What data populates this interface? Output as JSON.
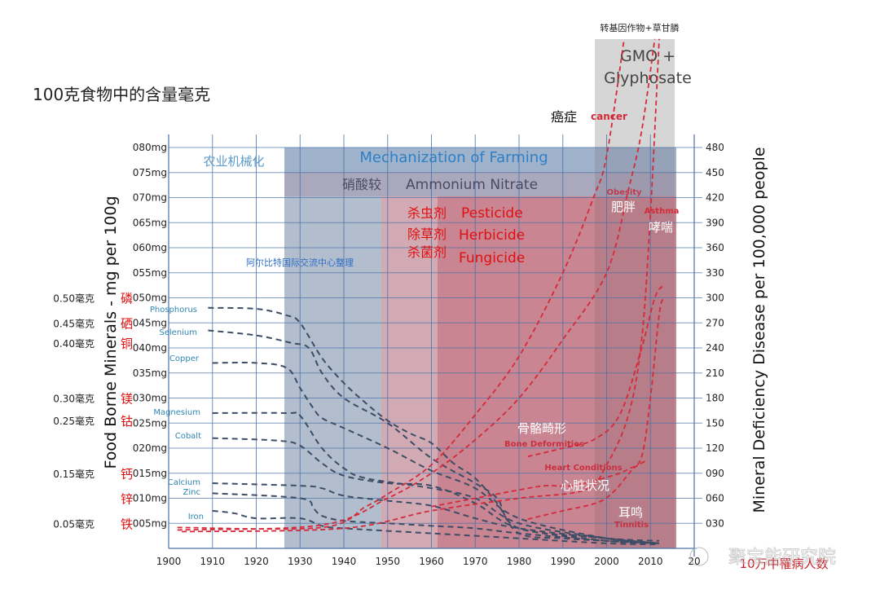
{
  "page_title": "100克食物中的含量毫克",
  "top_label_cn": "转基因作物+草甘膦",
  "chart_data": {
    "type": "line",
    "title": "",
    "xlabel": "",
    "ylabel_left": "Food Borne Minerals - mg per 100g",
    "ylabel_right": "Mineral Deficiency Disease per 100,000 people",
    "right_axis_note_cn": "10万中罹病人数",
    "xlim": [
      1900,
      2020
    ],
    "ylim_left": [
      0,
      80
    ],
    "ylim_right": [
      0,
      480
    ],
    "grid": true,
    "x_ticks": [
      "1900",
      "1910",
      "1920",
      "1930",
      "1940",
      "1950",
      "1960",
      "1970",
      "1980",
      "1990",
      "2000",
      "2010",
      "20"
    ],
    "y_left_ticks": [
      "005mg",
      "010mg",
      "015mg",
      "020mg",
      "025mg",
      "030mg",
      "035mg",
      "040mg",
      "045mg",
      "050mg",
      "055mg",
      "060mg",
      "065mg",
      "070mg",
      "075mg",
      "080mg"
    ],
    "y_right_ticks": [
      "030",
      "060",
      "090",
      "120",
      "150",
      "180",
      "210",
      "240",
      "270",
      "300",
      "330",
      "360",
      "390",
      "420",
      "450",
      "480"
    ],
    "left_cn_labels": [
      {
        "amount": "0.50毫克",
        "element": "磷",
        "mg": 50
      },
      {
        "amount": "0.45毫克",
        "element": "硒",
        "mg": 45
      },
      {
        "amount": "0.40毫克",
        "element": "铜",
        "mg": 41
      },
      {
        "amount": "0.30毫克",
        "element": "镁",
        "mg": 30
      },
      {
        "amount": "0.25毫克",
        "element": "钴",
        "mg": 25.5
      },
      {
        "amount": "0.15毫克",
        "element": "钙",
        "mg": 15
      },
      {
        "amount": "",
        "element": "锌",
        "mg": 10
      },
      {
        "amount": "0.05毫克",
        "element": "铁",
        "mg": 5
      }
    ],
    "eras": [
      {
        "label": "农业机械化",
        "color": "#ffffff"
      },
      {
        "label": "Mechanization of Farming",
        "color": "#9fb3cc",
        "start": 1927
      },
      {
        "label_cn": "硝酸较",
        "label": "Ammonium Nitrate",
        "color": "#aaa8bd",
        "start": 1927
      },
      {
        "label_cn": [
          "杀虫剂",
          "除草剂",
          "杀菌剂"
        ],
        "label": [
          "Pesticide",
          "Herbicide",
          "Fungicide"
        ],
        "color": "#c98592",
        "start": 1950
      },
      {
        "label": "GMO + Glyphosate",
        "color": "#d6d6d6",
        "start": 1997,
        "end": 2015
      }
    ],
    "credit_cn": "阿尔比特国际交流中心整理",
    "mineral_series": [
      {
        "name": "Phosphorus",
        "axis": "left",
        "x": [
          1909,
          1920,
          1927,
          1930,
          1935,
          1940,
          1945,
          1950,
          1955,
          1960,
          1965,
          1970,
          1975,
          1980,
          1990,
          2000,
          2012
        ],
        "y": [
          48,
          47.8,
          46.5,
          45,
          38,
          33,
          29,
          25.5,
          23,
          21,
          17,
          14,
          9,
          3,
          2,
          1.5,
          1
        ]
      },
      {
        "name": "Selenium",
        "axis": "left",
        "x": [
          1909,
          1920,
          1928,
          1932,
          1935,
          1940,
          1950,
          1960,
          1970,
          1975,
          1980,
          2000,
          2012
        ],
        "y": [
          43.5,
          42.5,
          41,
          40,
          35,
          30,
          25,
          18,
          13,
          10,
          4,
          2,
          1
        ]
      },
      {
        "name": "Copper",
        "axis": "left",
        "x": [
          1910,
          1920,
          1927,
          1930,
          1933,
          1935,
          1940,
          1950,
          1960,
          1970,
          1980,
          2000,
          2012
        ],
        "y": [
          37,
          37,
          36,
          32,
          28,
          26,
          24,
          20,
          15.5,
          12,
          6,
          2,
          1
        ]
      },
      {
        "name": "Magnesium",
        "axis": "left",
        "x": [
          1910,
          1927,
          1930,
          1935,
          1940,
          1945,
          1960,
          1970,
          1980,
          2000,
          2012
        ],
        "y": [
          27,
          27,
          26.5,
          20,
          16,
          14,
          12,
          10,
          5,
          2,
          1
        ]
      },
      {
        "name": "Cobalt",
        "axis": "left",
        "x": [
          1910,
          1925,
          1930,
          1935,
          1940,
          1950,
          1960,
          1970,
          1980,
          2000,
          2012
        ],
        "y": [
          22,
          21.5,
          20.5,
          17,
          14.5,
          13,
          12.5,
          9,
          4,
          1.5,
          1
        ]
      },
      {
        "name": "Calcium",
        "axis": "left",
        "x": [
          1910,
          1930,
          1935,
          1940,
          1950,
          1960,
          1970,
          1980,
          2000,
          2012
        ],
        "y": [
          13,
          12.5,
          12,
          10.5,
          9.5,
          8.5,
          6,
          4,
          2,
          1.5
        ]
      },
      {
        "name": "Zinc",
        "axis": "left",
        "x": [
          1910,
          1930,
          1933,
          1935,
          1940,
          1950,
          1960,
          1970,
          1980,
          2000,
          2012
        ],
        "y": [
          11,
          10,
          8,
          6.5,
          5.5,
          5,
          4.5,
          4,
          3,
          1.5,
          1
        ]
      },
      {
        "name": "Iron",
        "axis": "left",
        "x": [
          1910,
          1915,
          1920,
          1930,
          1935,
          1940,
          1960,
          1980,
          2000,
          2012
        ],
        "y": [
          7.5,
          7,
          6,
          6,
          4.5,
          4,
          3,
          2,
          1,
          0.8
        ]
      }
    ],
    "disease_series": [
      {
        "name": "cancer",
        "name_cn": "癌症",
        "axis": "right",
        "x": [
          1902,
          1935,
          1945,
          1950,
          1960,
          1970,
          1980,
          1990,
          1997,
          2000,
          2004
        ],
        "y": [
          25,
          25,
          50,
          65,
          100,
          160,
          230,
          330,
          420,
          470,
          610
        ]
      },
      {
        "name": "Obesity",
        "name_cn": "肥胖",
        "axis": "right",
        "x": [
          1902,
          1935,
          1950,
          1960,
          1970,
          1980,
          1990,
          2000,
          2005,
          2008,
          2011
        ],
        "y": [
          22,
          28,
          60,
          90,
          130,
          180,
          250,
          330,
          430,
          500,
          610
        ]
      },
      {
        "name": "Asthma",
        "name_cn": "哮喘",
        "axis": "right",
        "x": [
          1903,
          1940,
          1960,
          1980,
          1995,
          2000,
          2005,
          2008,
          2010,
          2012
        ],
        "y": [
          20,
          24,
          45,
          60,
          70,
          100,
          160,
          250,
          400,
          610
        ]
      },
      {
        "name": "Bone Deformities",
        "name_cn": "骨骼畸形",
        "axis": "right",
        "x": [
          1982,
          1990,
          1997,
          2003,
          2008,
          2011,
          2013
        ],
        "y": [
          110,
          120,
          130,
          160,
          240,
          300,
          315
        ]
      },
      {
        "name": "Heart Conditions",
        "name_cn": "心脏状况",
        "axis": "right",
        "x": [
          1960,
          1970,
          1980,
          1986,
          1992,
          2000,
          2005,
          2008,
          2010,
          2012,
          2013
        ],
        "y": [
          50,
          60,
          70,
          75,
          75,
          85,
          95,
          110,
          180,
          280,
          300
        ]
      },
      {
        "name": "Tinnitis",
        "name_cn": "耳鸣",
        "axis": "right",
        "x": [
          1982,
          1990,
          1998,
          2002,
          2006,
          2009
        ],
        "y": [
          35,
          45,
          55,
          70,
          95,
          105
        ]
      }
    ]
  },
  "watermark": "聚宝能研究院",
  "colors": {
    "mineral_line": "#3d4d66",
    "disease_line": "#d42a3a",
    "accent_blue": "#2f86c6",
    "red_text": "#e01010"
  }
}
